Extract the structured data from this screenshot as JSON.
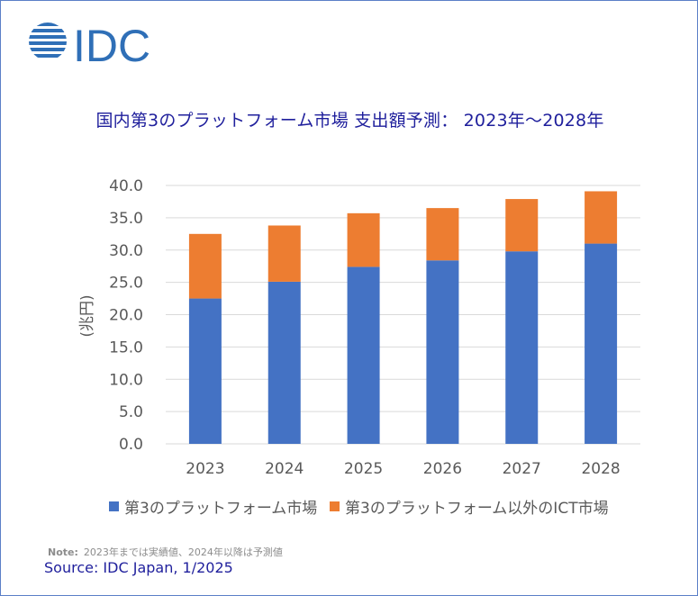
{
  "logo": {
    "text": "IDC"
  },
  "chart_data": {
    "type": "bar",
    "stacked": true,
    "title": "国内第3のプラットフォーム市場 支出額予測： 2023年～2028年",
    "ylabel": "(兆円)",
    "xlabel": "",
    "categories": [
      "2023",
      "2024",
      "2025",
      "2026",
      "2027",
      "2028"
    ],
    "ylim": [
      0,
      40
    ],
    "yticks": [
      "0.0",
      "5.0",
      "10.0",
      "15.0",
      "20.0",
      "25.0",
      "30.0",
      "35.0",
      "40.0"
    ],
    "grid": true,
    "legend_position": "bottom",
    "series": [
      {
        "name": "第3のプラットフォーム市場",
        "color": "#4472c4",
        "values": [
          22.5,
          25.1,
          27.4,
          28.4,
          29.8,
          31.0
        ]
      },
      {
        "name": "第3のプラットフォーム以外のICT市場",
        "color": "#ed7d31",
        "values": [
          10.0,
          8.7,
          8.3,
          8.1,
          8.1,
          8.1
        ]
      }
    ]
  },
  "footer": {
    "note_label": "Note:",
    "note_text": "2023年までは実績値、2024年以降は予測値",
    "source": "Source: IDC Japan, 1/2025"
  }
}
